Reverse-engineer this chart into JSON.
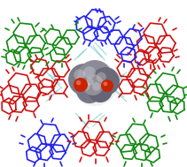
{
  "background_color": "#ffffff",
  "figsize": [
    2.11,
    1.89
  ],
  "dpi": 100,
  "colors": {
    "blue": "#2222ee",
    "red": "#cc1111",
    "green": "#118811",
    "cyan": "#77cccc",
    "gray1": "#888899",
    "gray2": "#666677",
    "gray3": "#aaaaaa",
    "red_atom": "#cc2200",
    "white": "#ffffff"
  },
  "lw_main": 1.2,
  "lw_cyan": 0.7,
  "xlim": [
    0,
    211
  ],
  "ylim": [
    0,
    189
  ]
}
